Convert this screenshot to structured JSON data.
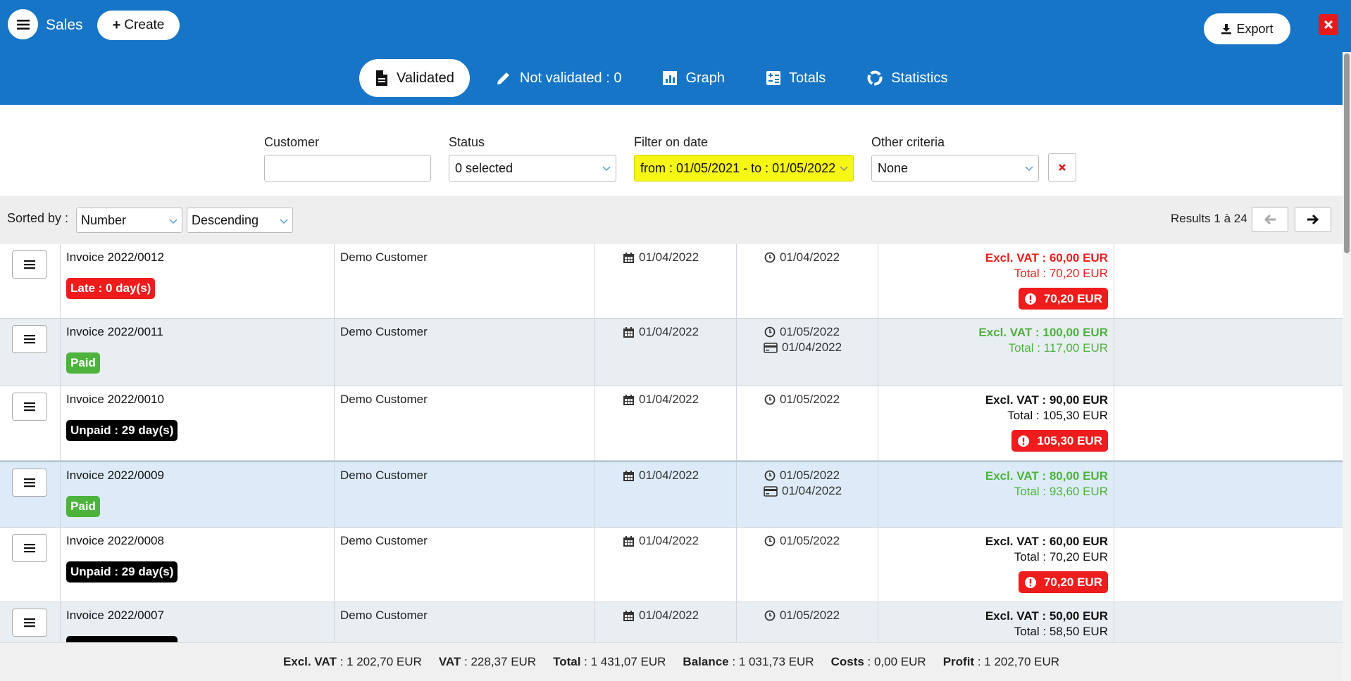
{
  "header": {
    "app_title": "Sales",
    "create_label": "Create",
    "export_label": "Export",
    "tabs": [
      {
        "label": "Validated",
        "icon": "document-icon",
        "active": true
      },
      {
        "label": "Not validated : 0",
        "icon": "pencil-icon",
        "active": false
      },
      {
        "label": "Graph",
        "icon": "chart-icon",
        "active": false
      },
      {
        "label": "Totals",
        "icon": "calculator-icon",
        "active": false
      },
      {
        "label": "Statistics",
        "icon": "ring-chart-icon",
        "active": false
      }
    ]
  },
  "filters": {
    "customer": {
      "label": "Customer",
      "value": ""
    },
    "status": {
      "label": "Status",
      "value": "0 selected"
    },
    "date": {
      "label": "Filter on date",
      "value": "from : 01/05/2021 - to : 01/05/2022"
    },
    "other": {
      "label": "Other criteria",
      "value": "None"
    }
  },
  "sort": {
    "label": "Sorted by :",
    "field": "Number",
    "order": "Descending",
    "results": "Results 1 à 24"
  },
  "rows": [
    {
      "invoice": "Invoice 2022/0012",
      "badge": "Late : 0 day(s)",
      "badge_color": "#ee1c1c",
      "customer": "Demo Customer",
      "date": "01/04/2022",
      "due": "01/04/2022",
      "paid": "",
      "excl_vat": "Excl. VAT : 60,00 EUR",
      "total": "Total : 70,20 EUR",
      "amount_color": "red",
      "balance": "70,20 EUR"
    },
    {
      "invoice": "Invoice 2022/0011",
      "badge": "Paid",
      "badge_color": "#4db33d",
      "customer": "Demo Customer",
      "date": "01/04/2022",
      "due": "01/05/2022",
      "paid": "01/04/2022",
      "excl_vat": "Excl. VAT : 100,00 EUR",
      "total": "Total : 117,00 EUR",
      "amount_color": "green",
      "balance": ""
    },
    {
      "invoice": "Invoice 2022/0010",
      "badge": "Unpaid : 29 day(s)",
      "badge_color": "#000000",
      "customer": "Demo Customer",
      "date": "01/04/2022",
      "due": "01/05/2022",
      "paid": "",
      "excl_vat": "Excl. VAT : 90,00 EUR",
      "total": "Total : 105,30 EUR",
      "amount_color": "black",
      "balance": "105,30 EUR"
    },
    {
      "invoice": "Invoice 2022/0009",
      "badge": "Paid",
      "badge_color": "#4db33d",
      "customer": "Demo Customer",
      "date": "01/04/2022",
      "due": "01/05/2022",
      "paid": "01/04/2022",
      "excl_vat": "Excl. VAT : 80,00 EUR",
      "total": "Total : 93,60 EUR",
      "amount_color": "green",
      "balance": ""
    },
    {
      "invoice": "Invoice 2022/0008",
      "badge": "Unpaid : 29 day(s)",
      "badge_color": "#000000",
      "customer": "Demo Customer",
      "date": "01/04/2022",
      "due": "01/05/2022",
      "paid": "",
      "excl_vat": "Excl. VAT : 60,00 EUR",
      "total": "Total : 70,20 EUR",
      "amount_color": "black",
      "balance": "70,20 EUR"
    },
    {
      "invoice": "Invoice 2022/0007",
      "badge": "",
      "badge_color": "#000000",
      "customer": "Demo Customer",
      "date": "01/04/2022",
      "due": "01/05/2022",
      "paid": "",
      "excl_vat": "Excl. VAT : 50,00 EUR",
      "total": "Total : 58,50 EUR",
      "amount_color": "black",
      "balance": ""
    }
  ],
  "footer": {
    "excl_vat_label": "Excl. VAT",
    "excl_vat": "1 202,70 EUR",
    "vat_label": "VAT",
    "vat": "228,37 EUR",
    "total_label": "Total",
    "total": "1 431,07 EUR",
    "balance_label": "Balance",
    "balance": "1 031,73 EUR",
    "costs_label": "Costs",
    "costs": "0,00 EUR",
    "profit_label": "Profit",
    "profit": "1 202,70 EUR"
  },
  "colors": {
    "header_bg": "#1775c7",
    "late": "#ee1c1c",
    "paid": "#4db33d",
    "date_filter_bg": "#f7f716"
  }
}
